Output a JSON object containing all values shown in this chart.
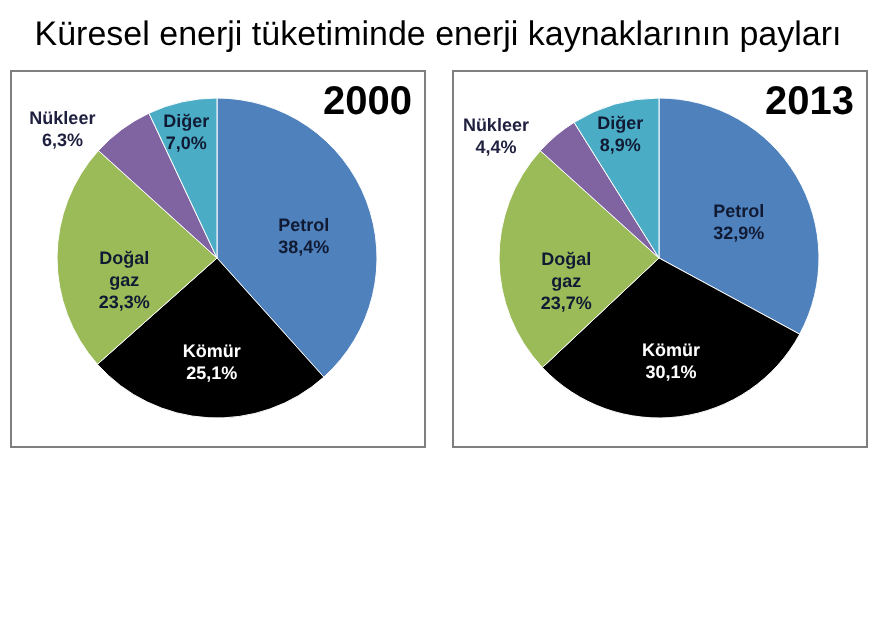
{
  "chart_data": [
    {
      "type": "pie",
      "title": "2000",
      "annotations": [
        "Küresel enerji tüketiminde enerji kaynaklarının payları"
      ],
      "categories": [
        "Petrol",
        "Kömür",
        "Doğal gaz",
        "Nükleer",
        "Diğer"
      ],
      "values": [
        38.4,
        25.1,
        23.3,
        6.3,
        7.0
      ],
      "value_labels": [
        "38,4%",
        "25,1%",
        "23,3%",
        "6,3%",
        "7,0%"
      ],
      "colors": [
        "#4f81bd",
        "#000000",
        "#9bbb59",
        "#8064a2",
        "#4bacc6"
      ]
    },
    {
      "type": "pie",
      "title": "2013",
      "categories": [
        "Petrol",
        "Kömür",
        "Doğal gaz",
        "Nükleer",
        "Diğer"
      ],
      "values": [
        32.9,
        30.1,
        23.7,
        4.4,
        8.9
      ],
      "value_labels": [
        "32,9%",
        "30,1%",
        "23,7%",
        "4,4%",
        "8,9%"
      ],
      "colors": [
        "#4f81bd",
        "#000000",
        "#9bbb59",
        "#8064a2",
        "#4bacc6"
      ]
    }
  ]
}
